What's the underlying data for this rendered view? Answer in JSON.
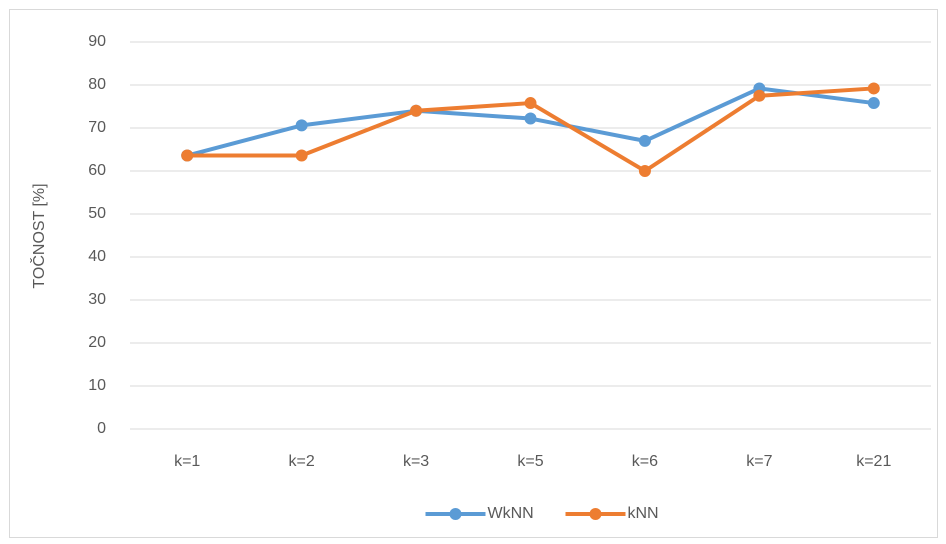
{
  "chart_data": {
    "type": "line",
    "y_label": "TOČNOST [%]",
    "categories": [
      "k=1",
      "k=2",
      "k=3",
      "k=5",
      "k=6",
      "k=7",
      "k=21"
    ],
    "series": [
      {
        "name": "WkNN",
        "color": "#5b9bd5",
        "values": [
          63.6,
          70.6,
          74.0,
          72.2,
          67.0,
          79.2,
          75.8
        ]
      },
      {
        "name": "kNN",
        "color": "#ed7d31",
        "values": [
          63.6,
          63.6,
          74.0,
          75.8,
          60.0,
          77.5,
          79.2
        ]
      }
    ],
    "ylim": [
      0,
      90
    ],
    "yticks": [
      0,
      10,
      20,
      30,
      40,
      50,
      60,
      70,
      80,
      90
    ],
    "grid": true,
    "legend": "bottom"
  }
}
